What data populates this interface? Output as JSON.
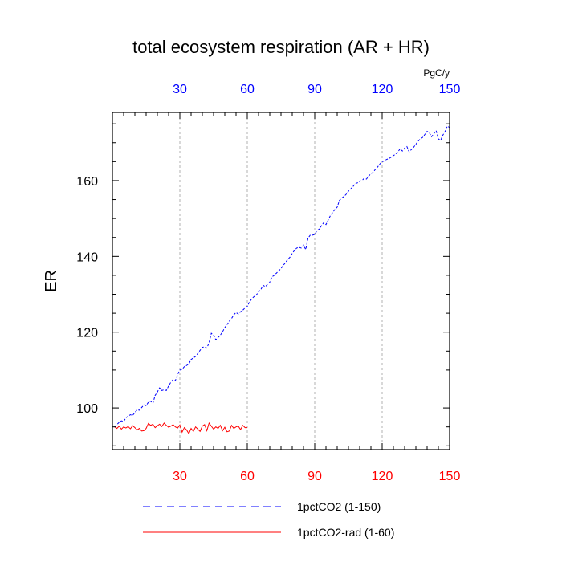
{
  "chart_data": {
    "type": "line",
    "title": "total ecosystem respiration (AR + HR)",
    "ylabel": "ER",
    "units": "PgC/y",
    "xlim": [
      0,
      150
    ],
    "ylim": [
      89,
      178
    ],
    "grid_x": true,
    "x_ticks": [
      30,
      60,
      90,
      120,
      150
    ],
    "y_ticks": [
      100,
      120,
      140,
      160
    ],
    "y_minor_step": 5,
    "x_minor_step": 5,
    "legend_position": "bottom",
    "series": [
      {
        "name": "1pctCO2 (1-150)",
        "color": "#0000ff",
        "dash": "dashed",
        "x": [
          1,
          2,
          3,
          4,
          5,
          6,
          7,
          8,
          9,
          10,
          11,
          12,
          13,
          14,
          15,
          16,
          17,
          18,
          19,
          20,
          21,
          22,
          23,
          24,
          25,
          26,
          27,
          28,
          29,
          30,
          31,
          32,
          33,
          34,
          35,
          36,
          37,
          38,
          39,
          40,
          41,
          42,
          43,
          44,
          45,
          46,
          47,
          48,
          49,
          50,
          51,
          52,
          53,
          54,
          55,
          56,
          57,
          58,
          59,
          60,
          61,
          62,
          63,
          64,
          65,
          66,
          67,
          68,
          69,
          70,
          71,
          72,
          73,
          74,
          75,
          76,
          77,
          78,
          79,
          80,
          81,
          82,
          83,
          84,
          85,
          86,
          87,
          88,
          89,
          90,
          91,
          92,
          93,
          94,
          95,
          96,
          97,
          98,
          99,
          100,
          101,
          102,
          103,
          104,
          105,
          106,
          107,
          108,
          109,
          110,
          111,
          112,
          113,
          114,
          115,
          116,
          117,
          118,
          119,
          120,
          121,
          122,
          123,
          124,
          125,
          126,
          127,
          128,
          129,
          130,
          131,
          132,
          133,
          134,
          135,
          136,
          137,
          138,
          139,
          140,
          141,
          142,
          143,
          144,
          145,
          146,
          147,
          148,
          149,
          150
        ],
        "values": [
          95.0,
          95.6,
          96.2,
          96.6,
          96.4,
          97.4,
          97.8,
          98.2,
          98.0,
          98.8,
          99.5,
          99.4,
          100.1,
          100.8,
          100.6,
          101.5,
          101.8,
          101.2,
          103.3,
          104.2,
          105.3,
          104.6,
          104.8,
          104.6,
          105.8,
          106.8,
          107.5,
          107.2,
          108.8,
          110.0,
          110.2,
          110.9,
          111.2,
          111.6,
          112.8,
          113.2,
          113.6,
          114.4,
          115.2,
          116.0,
          116.1,
          115.8,
          117.2,
          119.7,
          119.2,
          118.0,
          118.6,
          119.2,
          120.1,
          121.2,
          122.0,
          122.9,
          123.6,
          124.6,
          125.2,
          124.8,
          125.4,
          125.8,
          126.4,
          126.8,
          128.0,
          128.8,
          129.4,
          129.8,
          130.6,
          131.2,
          132.4,
          132.0,
          132.6,
          133.2,
          134.6,
          135.0,
          135.6,
          136.2,
          136.8,
          137.6,
          138.4,
          139.2,
          139.8,
          140.8,
          141.6,
          142.2,
          142.4,
          142.2,
          143.0,
          141.8,
          144.8,
          145.6,
          145.6,
          145.8,
          146.8,
          147.2,
          148.1,
          148.9,
          148.4,
          149.6,
          150.8,
          151.6,
          152.4,
          153.0,
          154.8,
          155.4,
          155.8,
          156.4,
          157.2,
          157.8,
          158.4,
          159.2,
          159.4,
          159.8,
          160.0,
          160.6,
          160.4,
          161.2,
          161.8,
          162.2,
          163.0,
          163.6,
          164.4,
          165.0,
          165.2,
          165.6,
          165.8,
          166.2,
          166.6,
          167.0,
          167.6,
          168.4,
          167.8,
          168.6,
          169.0,
          167.6,
          168.2,
          168.8,
          169.6,
          170.4,
          171.0,
          171.4,
          172.2,
          173.0,
          172.6,
          171.6,
          172.4,
          173.2,
          171.0,
          170.6,
          172.0,
          173.0,
          174.4,
          174.0
        ]
      },
      {
        "name": "1pctCO2-rad (1-60)",
        "color": "#ff0000",
        "dash": "solid",
        "x": [
          1,
          2,
          3,
          4,
          5,
          6,
          7,
          8,
          9,
          10,
          11,
          12,
          13,
          14,
          15,
          16,
          17,
          18,
          19,
          20,
          21,
          22,
          23,
          24,
          25,
          26,
          27,
          28,
          29,
          30,
          31,
          32,
          33,
          34,
          35,
          36,
          37,
          38,
          39,
          40,
          41,
          42,
          43,
          44,
          45,
          46,
          47,
          48,
          49,
          50,
          51,
          52,
          53,
          54,
          55,
          56,
          57,
          58,
          59,
          60
        ],
        "values": [
          95.0,
          94.6,
          95.2,
          94.4,
          95.0,
          94.7,
          95.1,
          94.5,
          95.3,
          94.8,
          94.2,
          94.6,
          93.9,
          94.0,
          94.6,
          95.9,
          95.4,
          95.7,
          94.8,
          95.3,
          95.7,
          95.1,
          96.0,
          95.4,
          94.9,
          95.2,
          95.6,
          95.0,
          94.7,
          95.5,
          93.6,
          94.8,
          94.2,
          93.2,
          94.6,
          93.8,
          95.0,
          94.4,
          93.8,
          95.2,
          95.6,
          94.0,
          96.0,
          95.2,
          94.4,
          95.0,
          94.6,
          95.4,
          94.0,
          94.9,
          93.7,
          93.9,
          95.4,
          94.6,
          95.0,
          95.2,
          94.3,
          95.4,
          94.8,
          94.8
        ]
      }
    ]
  }
}
